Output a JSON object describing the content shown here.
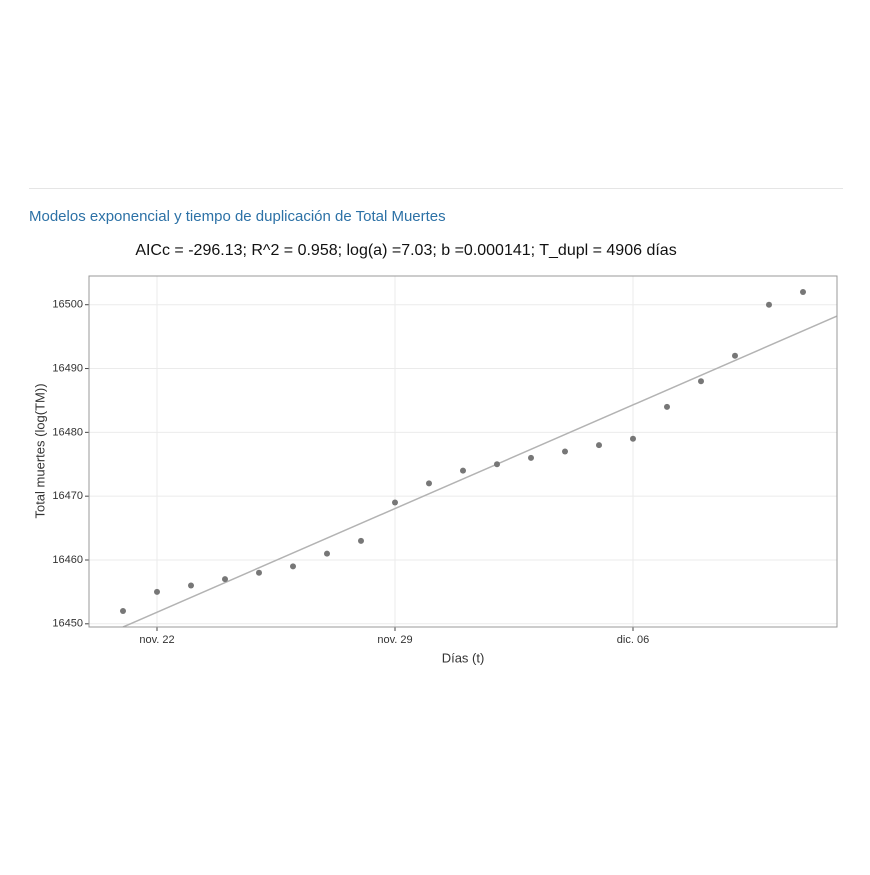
{
  "heading": "Modelos exponencial y tiempo de duplicación de Total Muertes",
  "chart_data": {
    "type": "scatter",
    "title": "AICc = -296.13; R^2 = 0.958; log(a) =7.03; b =0.000141; T_dupl = 4906 días",
    "x_label": "Días (t)",
    "y_label": "Total muertes (log(TM))",
    "x": [
      "nov. 21",
      "nov. 22",
      "nov. 23",
      "nov. 24",
      "nov. 25",
      "nov. 26",
      "nov. 27",
      "nov. 28",
      "nov. 29",
      "nov. 30",
      "dic. 01",
      "dic. 02",
      "dic. 03",
      "dic. 04",
      "dic. 05",
      "dic. 06",
      "dic. 07",
      "dic. 08",
      "dic. 09",
      "dic. 10",
      "dic. 11"
    ],
    "values": [
      16452,
      16455,
      16456,
      16457,
      16458,
      16459,
      16461,
      16463,
      16469,
      16472,
      16474,
      16475,
      16476,
      16477,
      16478,
      16479,
      16484,
      16488,
      16492,
      16500,
      16502
    ],
    "color": "#777777",
    "xticks": [
      "nov. 22",
      "nov. 29",
      "dic. 06"
    ],
    "ylim": [
      16449.5,
      16504.5
    ],
    "yticks": [
      16450,
      16460,
      16470,
      16480,
      16490,
      16500
    ],
    "grid": true,
    "trend": {
      "x": [
        "nov. 21",
        "dic. 11"
      ],
      "values": [
        16449.5,
        16495.9
      ],
      "color": "#b3b3b3"
    }
  }
}
